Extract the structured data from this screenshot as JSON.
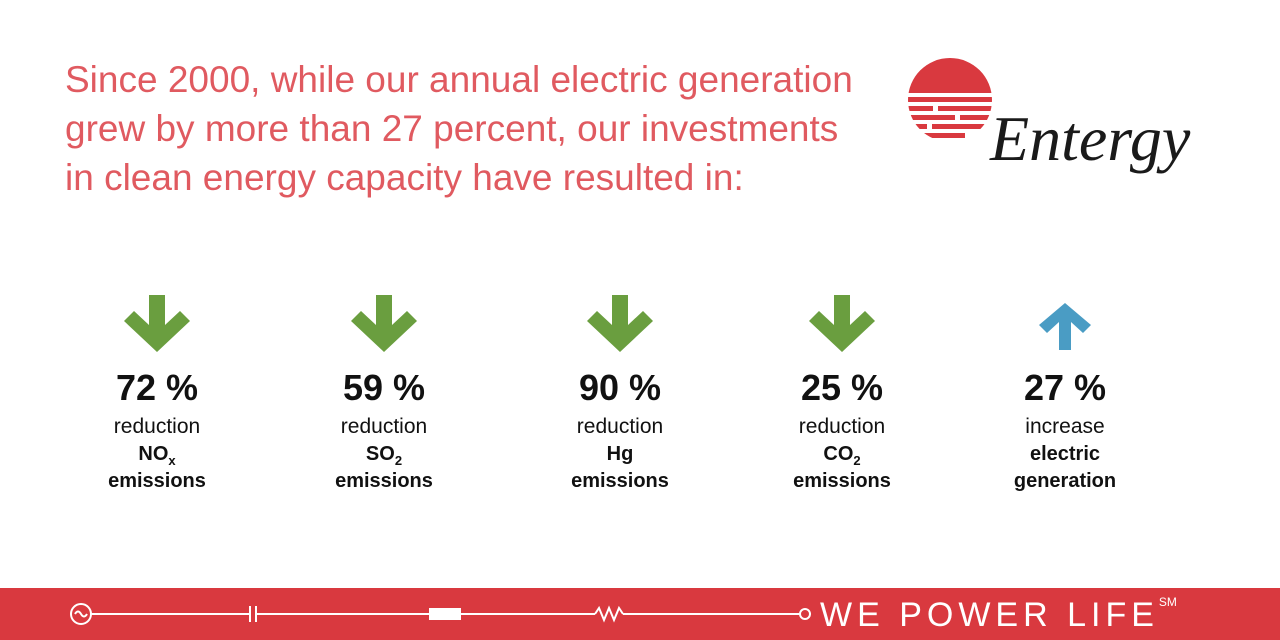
{
  "headline": [
    "Since 2000, while our annual electric generation",
    "grew by more than 27 percent, our investments",
    "in clean energy capacity have resulted in:"
  ],
  "logo": {
    "name": "Entergy"
  },
  "stats": [
    {
      "arrow": "down",
      "arrow_color": "#6a9e3f",
      "value": "72 %",
      "label": "reduction",
      "subject": "NO",
      "subject_sub": "x",
      "tail": "emissions"
    },
    {
      "arrow": "down",
      "arrow_color": "#6a9e3f",
      "value": "59 %",
      "label": "reduction",
      "subject": "SO",
      "subject_sub": "2",
      "tail": "emissions"
    },
    {
      "arrow": "down",
      "arrow_color": "#6a9e3f",
      "value": "90 %",
      "label": "reduction",
      "subject": "Hg",
      "tail": "emissions"
    },
    {
      "arrow": "down",
      "arrow_color": "#6a9e3f",
      "value": "25 %",
      "label": "reduction",
      "subject": "CO",
      "subject_sub": "2",
      "tail": "emissions"
    },
    {
      "arrow": "up",
      "arrow_color": "#4a9cc4",
      "value": "27 %",
      "label": "increase",
      "subject": "electric",
      "tail": "generation"
    }
  ],
  "footer": {
    "tagline": "WE POWER LIFE",
    "mark": "SM"
  }
}
